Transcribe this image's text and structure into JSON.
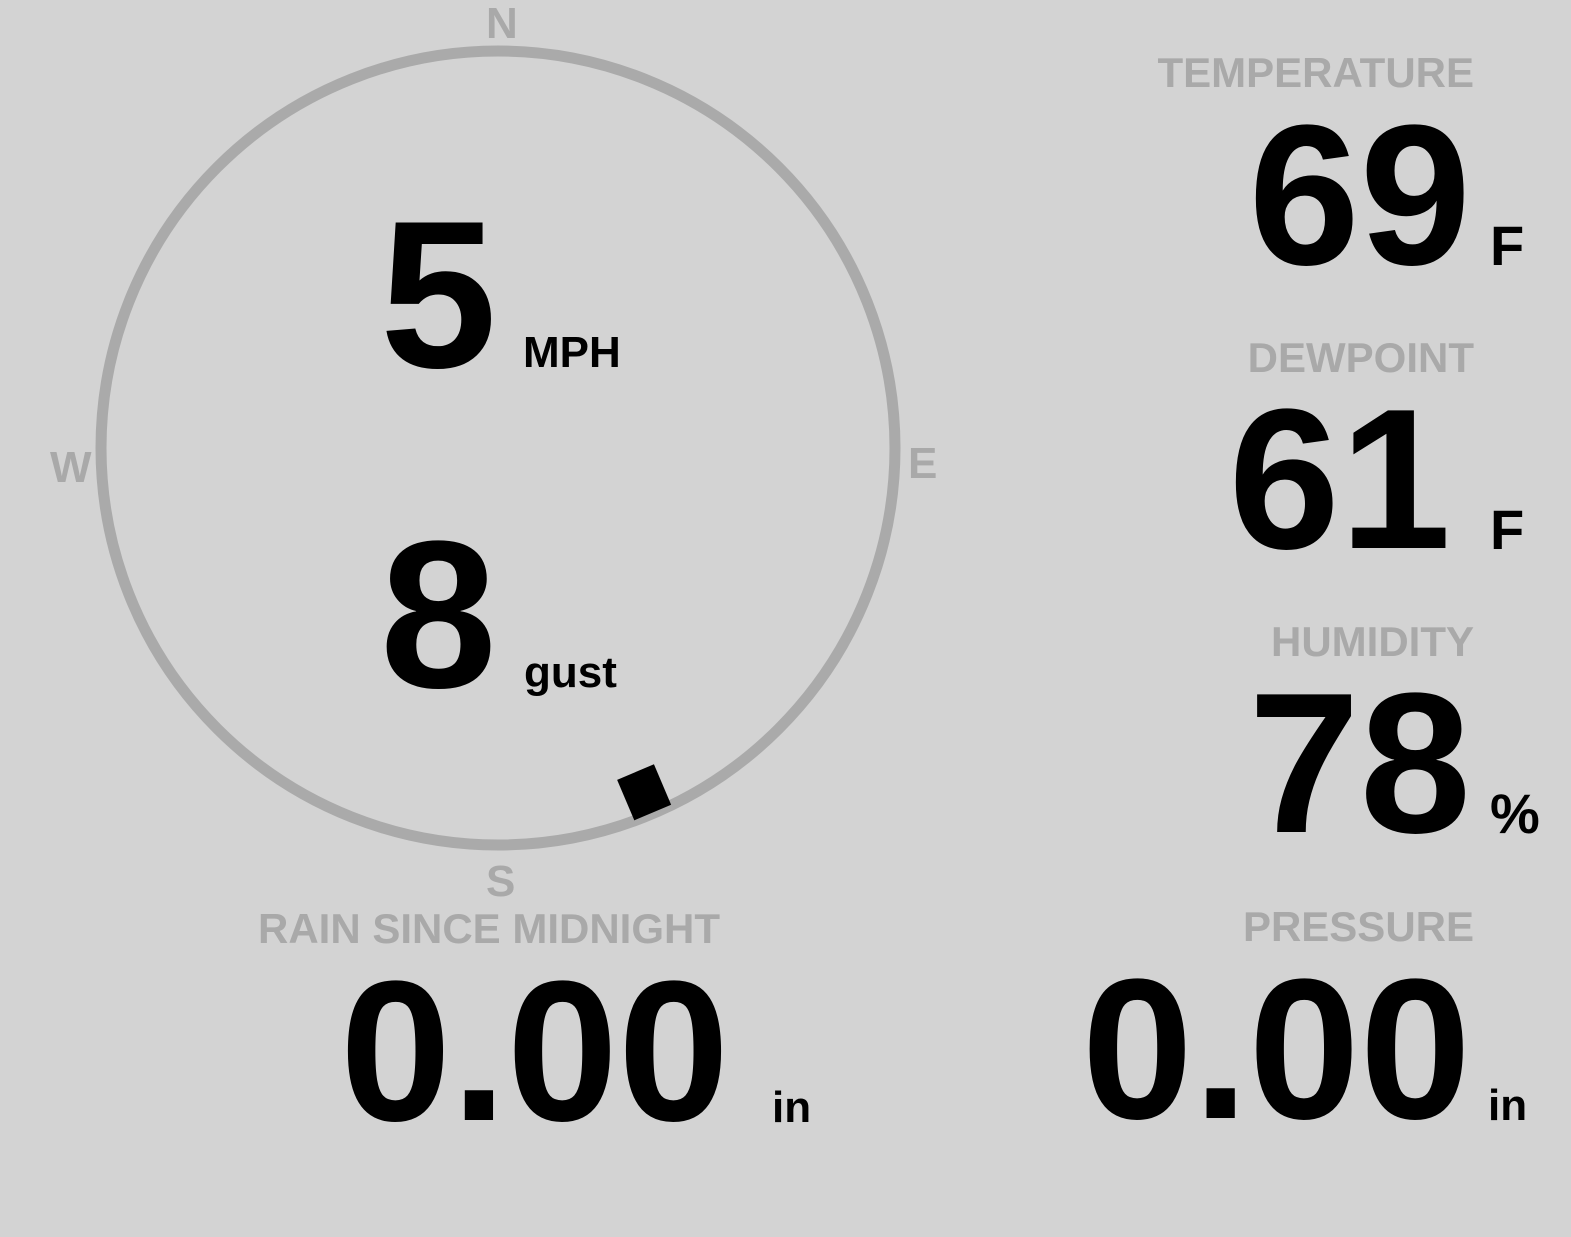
{
  "compass": {
    "north": "N",
    "south": "S",
    "east": "E",
    "west": "W",
    "direction_deg": 157,
    "ring_color": "#aaaaaa"
  },
  "wind": {
    "speed": "5",
    "speed_unit": "MPH",
    "gust": "8",
    "gust_unit": "gust"
  },
  "temperature": {
    "label": "TEMPERATURE",
    "value": "69",
    "unit": "F"
  },
  "dewpoint": {
    "label": "DEWPOINT",
    "value": "61",
    "unit": "F"
  },
  "humidity": {
    "label": "HUMIDITY",
    "value": "78",
    "unit": "%"
  },
  "rain": {
    "label": "RAIN SINCE MIDNIGHT",
    "value": "0.00",
    "unit": "in"
  },
  "pressure": {
    "label": "PRESSURE",
    "value": "0.00",
    "unit": "in"
  }
}
